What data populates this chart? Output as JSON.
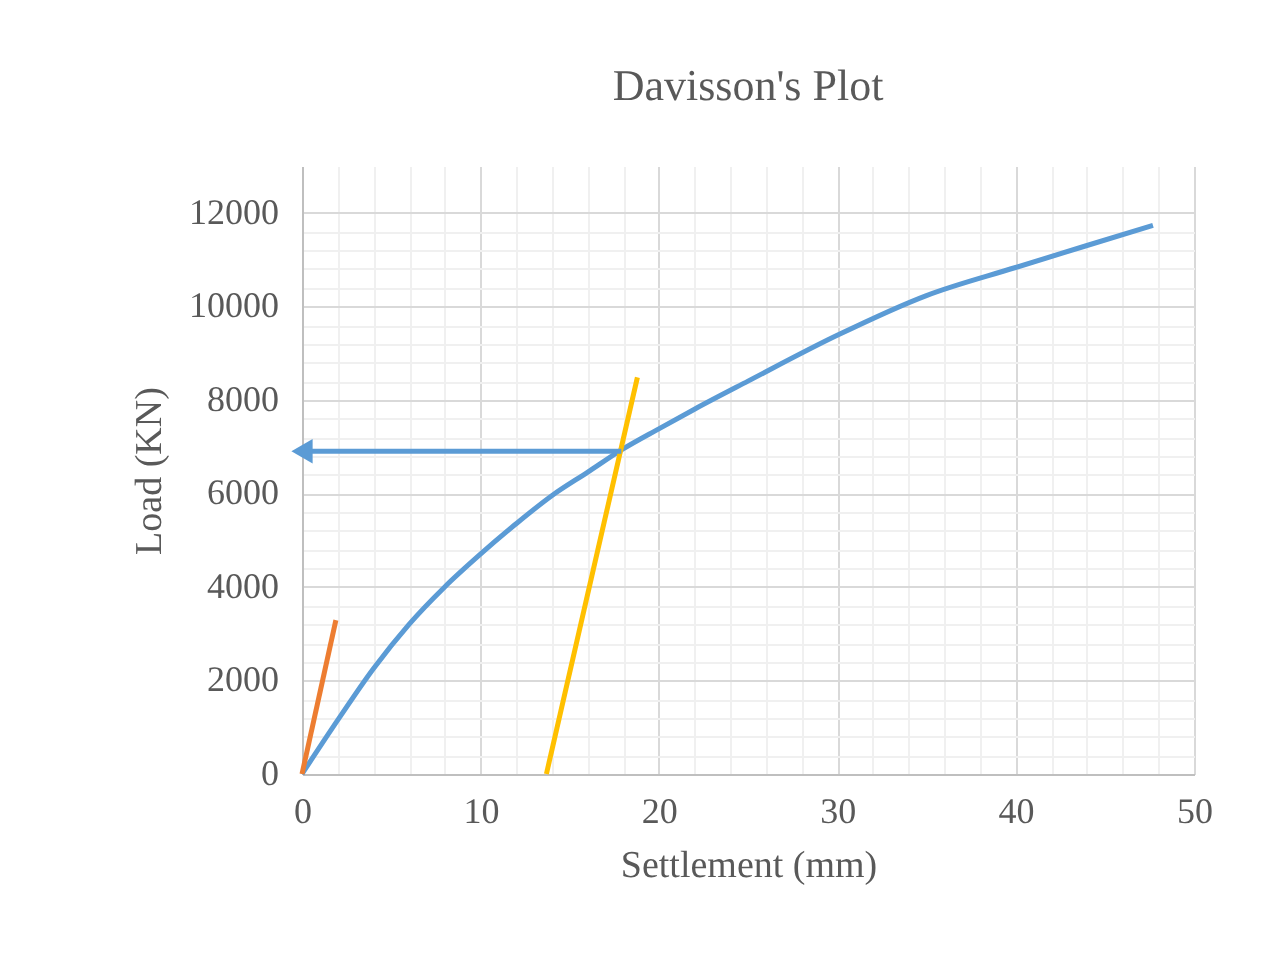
{
  "chart_data": {
    "type": "line",
    "title": "Davisson's Plot",
    "xlabel": "Settlement (mm)",
    "ylabel": "Load (KN)",
    "xlim": [
      0,
      50
    ],
    "xticks": [
      0,
      10,
      20,
      30,
      40,
      50
    ],
    "ylim": [
      0,
      13000
    ],
    "yticks": [
      0,
      2000,
      4000,
      6000,
      8000,
      10000,
      12000
    ],
    "grid": true,
    "series": [
      {
        "color": "#5b9bd5",
        "x": [
          0,
          2,
          4,
          6,
          8,
          10,
          12,
          14,
          16,
          18,
          20,
          22,
          25,
          30,
          35,
          40,
          44,
          47.7
        ],
        "values": [
          0,
          1150,
          2250,
          3200,
          4000,
          4700,
          5350,
          5950,
          6450,
          6950,
          7380,
          7800,
          8400,
          9380,
          10230,
          10830,
          11300,
          11730
        ]
      },
      {
        "color": "#ed7d31",
        "x": [
          0,
          1.9
        ],
        "values": [
          0,
          3290
        ]
      },
      {
        "color": "#ffc000",
        "x": [
          13.7,
          18.8
        ],
        "values": [
          0,
          8480
        ]
      },
      {
        "color": "#5b9bd5",
        "x": [
          17.9,
          0
        ],
        "values": [
          6900,
          6900
        ],
        "marker": "triangle"
      }
    ]
  }
}
